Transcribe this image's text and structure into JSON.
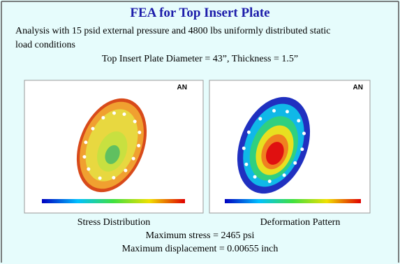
{
  "slide": {
    "title": "FEA for Top Insert Plate",
    "lines": [
      "Analysis with 15 psid external pressure and 4800 lbs uniformly distributed static",
      "load conditions",
      "Top Insert Plate Diameter = 43”, Thickness = 1.5”"
    ],
    "figures": [
      {
        "logo": "AN",
        "caption": "Stress Distribution"
      },
      {
        "logo": "AN",
        "caption": "Deformation Pattern"
      }
    ],
    "results": [
      "Maximum stress = 2465 psi",
      "Maximum displacement = 0.00655 inch"
    ]
  }
}
